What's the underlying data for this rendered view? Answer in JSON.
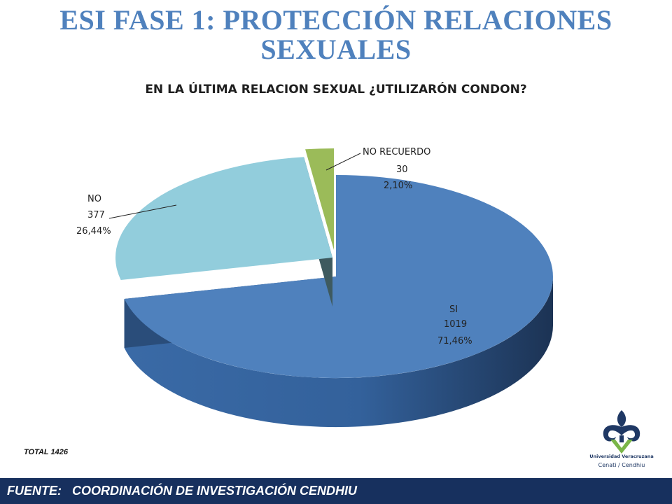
{
  "title": "ESI FASE 1: PROTECCIÓN RELACIONES SEXUALES",
  "chart_data": {
    "type": "pie",
    "title": "EN LA ÚLTIMA RELACION SEXUAL ¿UTILIZARÓN CONDON?",
    "categories": [
      "SI",
      "NO",
      "NO RECUERDO"
    ],
    "values": [
      1019,
      377,
      30
    ],
    "percent_labels": [
      "71,46%",
      "26,44%",
      "2,10%"
    ],
    "colors": [
      "#4f81bd",
      "#92cddc",
      "#9bbb59"
    ],
    "style": "3d exploded",
    "legend": "none"
  },
  "total_note": "TOTAL 1426",
  "logo": {
    "name": "Universidad Veracruzana",
    "sub": "Cenati / Cendhiu",
    "colors": [
      "#1f3864",
      "#7ab648"
    ]
  },
  "footer": {
    "text": "FUENTE:   COORDINACIÓN DE INVESTIGACIÓN CENDHIU",
    "background": "#17305e"
  }
}
